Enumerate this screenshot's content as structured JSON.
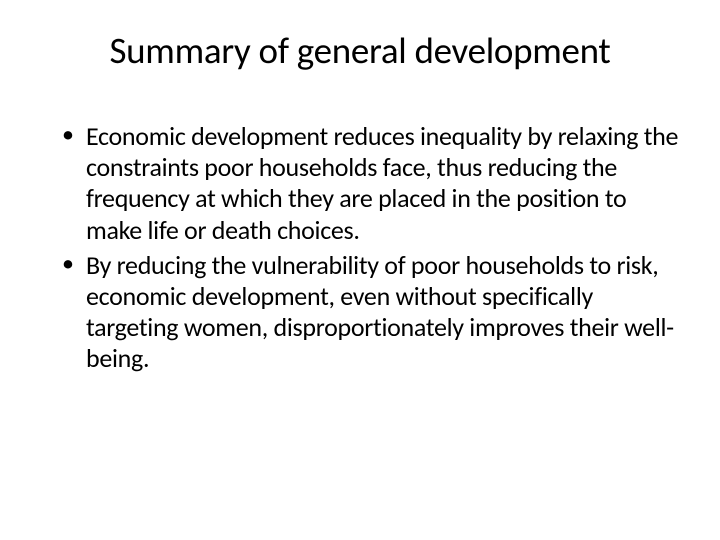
{
  "slide": {
    "title": "Summary of general development",
    "bullets": [
      "Economic development reduces inequality by relaxing the constraints poor households face, thus reducing the frequency at which they are placed in the position to make life or death choices.",
      "By reducing the vulnerability of poor households to risk, economic development, even without specifically targeting women, disproportionately improves their well-being."
    ]
  },
  "styling": {
    "background_color": "#ffffff",
    "text_color": "#000000",
    "title_fontsize": 37,
    "body_fontsize": 26,
    "font_family": "Calibri"
  }
}
